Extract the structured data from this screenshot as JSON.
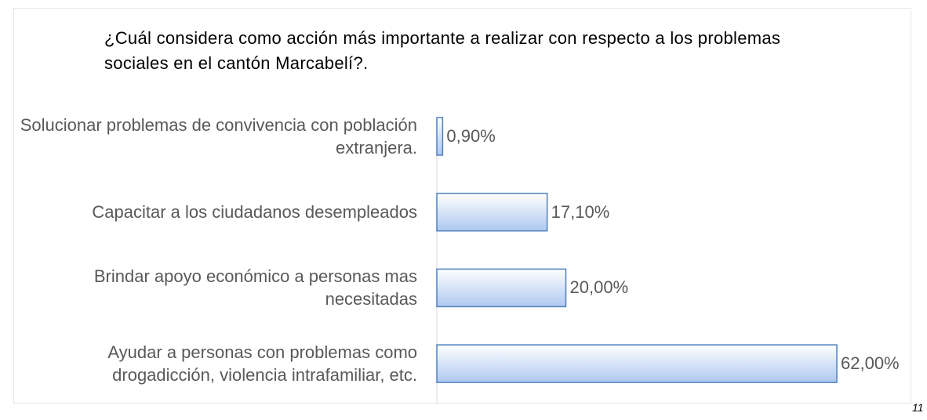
{
  "chart_data": {
    "type": "bar",
    "title": "¿Cuál considera como  acción más importante a realizar con respecto a los problemas sociales en el cantón Marcabelí?.",
    "categories": [
      "Solucionar problemas de convivencia con población extranjera.",
      "Capacitar a los ciudadanos desempleados",
      "Brindar apoyo económico a personas mas necesitadas",
      "Ayudar a personas con problemas como drogadicción, violencia intrafamiliar, etc."
    ],
    "values": [
      0.9,
      17.1,
      20,
      62
    ],
    "value_labels": [
      "0,90%",
      "17,10%",
      "20,00%",
      "62,00%"
    ],
    "color": "#4f81bd",
    "orientation": "horizontal"
  },
  "page_number": "11"
}
